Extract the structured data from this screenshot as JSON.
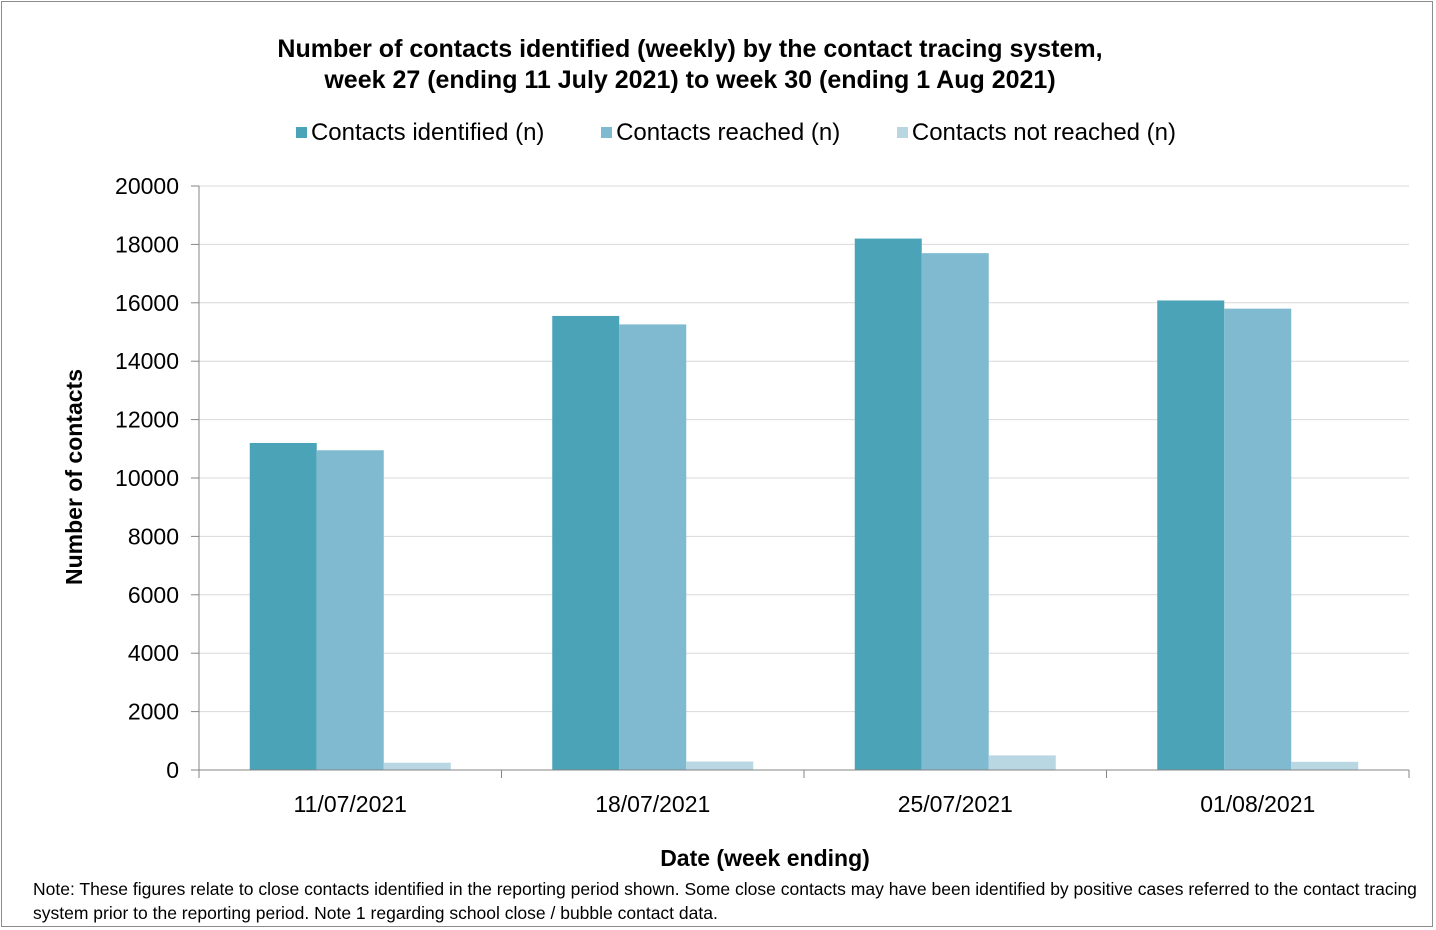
{
  "chart_data": {
    "type": "bar",
    "title": "Number of contacts identified (weekly) by the contact tracing system,",
    "subtitle": "week 27 (ending 11 July 2021) to week 30 (ending 1 Aug 2021)",
    "xlabel": "Date (week ending)",
    "ylabel": "Number of contacts",
    "ylim": [
      0,
      20000
    ],
    "yticks": [
      "0",
      "2000",
      "4000",
      "6000",
      "8000",
      "10000",
      "12000",
      "14000",
      "16000",
      "18000",
      "20000"
    ],
    "categories": [
      "11/07/2021",
      "18/07/2021",
      "25/07/2021",
      "01/08/2021"
    ],
    "series": [
      {
        "name": "Contacts identified (n)",
        "color": "#4BA3B8",
        "values": [
          11200,
          15550,
          18200,
          16080
        ]
      },
      {
        "name": "Contacts reached (n)",
        "color": "#7FBAD0",
        "values": [
          10950,
          15260,
          17700,
          15800
        ]
      },
      {
        "name": "Contacts not reached (n)",
        "color": "#B8D7E3",
        "values": [
          250,
          290,
          500,
          280
        ]
      }
    ],
    "grid": true,
    "legend": "top"
  },
  "note": "Note: These figures relate to close contacts identified in the reporting period shown. Some close contacts may have been identified by positive cases referred to the contact tracing system prior to the reporting period. Note 1 regarding school close / bubble contact data."
}
